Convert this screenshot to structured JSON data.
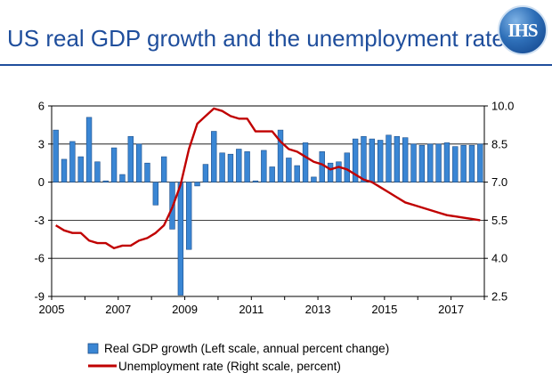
{
  "header": {
    "title": "US real GDP growth and the unemployment rate",
    "logo_text": "IHS"
  },
  "colors": {
    "title": "#1f4e9c",
    "bar_fill": "#3a86d4",
    "bar_stroke": "#1e4f8a",
    "line": "#c00000"
  },
  "chart_data": {
    "type": "bar+line",
    "x_tick_labels": [
      "2005",
      "2007",
      "2009",
      "2011",
      "2013",
      "2015",
      "2017"
    ],
    "y_left": {
      "ticks": [
        6,
        3,
        0,
        -3,
        -6,
        -9
      ],
      "tick_labels": [
        "6",
        "3",
        "0",
        "-3",
        "-6",
        "-9"
      ],
      "range": [
        -9,
        6
      ]
    },
    "y_right": {
      "ticks": [
        10.0,
        8.5,
        7.0,
        5.5,
        4.0,
        2.5
      ],
      "tick_labels": [
        "10.0",
        "8.5",
        "7.0",
        "5.5",
        "4.0",
        "2.5"
      ],
      "range": [
        2.5,
        10.0
      ]
    },
    "grid": "horizontal",
    "series": [
      {
        "name": "Real GDP growth (Left scale, annual percent change)",
        "type": "bar",
        "axis": "left",
        "x": [
          "2005 Q1",
          "2005 Q2",
          "2005 Q3",
          "2005 Q4",
          "2006 Q1",
          "2006 Q2",
          "2006 Q3",
          "2006 Q4",
          "2007 Q1",
          "2007 Q2",
          "2007 Q3",
          "2007 Q4",
          "2008 Q1",
          "2008 Q2",
          "2008 Q3",
          "2008 Q4",
          "2009 Q1",
          "2009 Q2",
          "2009 Q3",
          "2009 Q4",
          "2010 Q1",
          "2010 Q2",
          "2010 Q3",
          "2010 Q4",
          "2011 Q1",
          "2011 Q2",
          "2011 Q3",
          "2011 Q4",
          "2012 Q1",
          "2012 Q2",
          "2012 Q3",
          "2012 Q4",
          "2013 Q1",
          "2013 Q2",
          "2013 Q3",
          "2013 Q4",
          "2014 Q1",
          "2014 Q2",
          "2014 Q3",
          "2014 Q4",
          "2015 Q1",
          "2015 Q2",
          "2015 Q3",
          "2015 Q4",
          "2016 Q1",
          "2016 Q2",
          "2016 Q3",
          "2016 Q4",
          "2017 Q1",
          "2017 Q2",
          "2017 Q3",
          "2017 Q4"
        ],
        "values": [
          4.1,
          1.8,
          3.2,
          2.0,
          5.1,
          1.6,
          0.1,
          2.7,
          0.6,
          3.6,
          3.0,
          1.5,
          -1.8,
          2.0,
          -3.7,
          -8.9,
          -5.3,
          -0.3,
          1.4,
          4.0,
          2.3,
          2.2,
          2.6,
          2.4,
          0.1,
          2.5,
          1.2,
          4.1,
          1.9,
          1.3,
          3.1,
          0.4,
          2.4,
          1.5,
          1.6,
          2.3,
          3.4,
          3.6,
          3.4,
          3.3,
          3.7,
          3.6,
          3.5,
          3.0,
          2.9,
          3.0,
          3.0,
          3.1,
          2.8,
          2.9,
          2.9,
          3.0
        ]
      },
      {
        "name": "Unemployment rate (Right scale, percent)",
        "type": "line",
        "axis": "right",
        "x": [
          "2005 Q1",
          "2005 Q2",
          "2005 Q3",
          "2005 Q4",
          "2006 Q1",
          "2006 Q2",
          "2006 Q3",
          "2006 Q4",
          "2007 Q1",
          "2007 Q2",
          "2007 Q3",
          "2007 Q4",
          "2008 Q1",
          "2008 Q2",
          "2008 Q3",
          "2008 Q4",
          "2009 Q1",
          "2009 Q2",
          "2009 Q3",
          "2009 Q4",
          "2010 Q1",
          "2010 Q2",
          "2010 Q3",
          "2010 Q4",
          "2011 Q1",
          "2011 Q2",
          "2011 Q3",
          "2011 Q4",
          "2012 Q1",
          "2012 Q2",
          "2012 Q3",
          "2012 Q4",
          "2013 Q1",
          "2013 Q2",
          "2013 Q3",
          "2013 Q4",
          "2014 Q1",
          "2014 Q2",
          "2014 Q3",
          "2014 Q4",
          "2015 Q1",
          "2015 Q2",
          "2015 Q3",
          "2015 Q4",
          "2016 Q1",
          "2016 Q2",
          "2016 Q3",
          "2016 Q4",
          "2017 Q1",
          "2017 Q2",
          "2017 Q3",
          "2017 Q4"
        ],
        "values": [
          5.3,
          5.1,
          5.0,
          5.0,
          4.7,
          4.6,
          4.6,
          4.4,
          4.5,
          4.5,
          4.7,
          4.8,
          5.0,
          5.3,
          6.0,
          6.9,
          8.3,
          9.3,
          9.6,
          9.9,
          9.8,
          9.6,
          9.5,
          9.5,
          9.0,
          9.0,
          9.0,
          8.6,
          8.3,
          8.2,
          8.0,
          7.8,
          7.7,
          7.5,
          7.6,
          7.5,
          7.3,
          7.1,
          7.0,
          6.8,
          6.6,
          6.4,
          6.2,
          6.1,
          6.0,
          5.9,
          5.8,
          5.7,
          5.65,
          5.6,
          5.55,
          5.5
        ]
      }
    ],
    "legend_position": "bottom"
  }
}
